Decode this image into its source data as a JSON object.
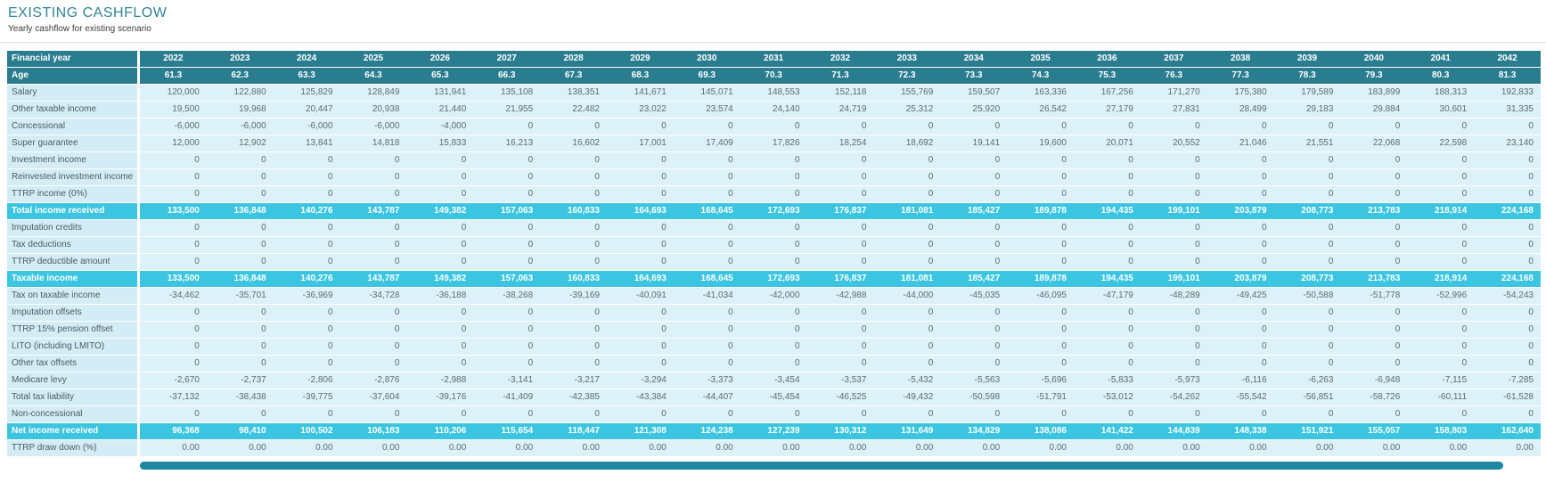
{
  "page": {
    "title": "EXISTING CASHFLOW",
    "subtitle": "Yearly cashflow for existing scenario"
  },
  "colors": {
    "title_color": "#2E8497",
    "header_bg": "#2A7D8F",
    "highlight_bg": "#3CC5E0",
    "row_bg": "#DDF1F8",
    "label_bg": "#D3ECF6",
    "value_text": "#5D6C74",
    "label_text": "#4E5B61",
    "scrollbar_color": "#1E87A1"
  },
  "table": {
    "header_rows": [
      {
        "label": "Financial year",
        "values": [
          "2022",
          "2023",
          "2024",
          "2025",
          "2026",
          "2027",
          "2028",
          "2029",
          "2030",
          "2031",
          "2032",
          "2033",
          "2034",
          "2035",
          "2036",
          "2037",
          "2038",
          "2039",
          "2040",
          "2041",
          "2042"
        ]
      },
      {
        "label": "Age",
        "values": [
          "61.3",
          "62.3",
          "63.3",
          "64.3",
          "65.3",
          "66.3",
          "67.3",
          "68.3",
          "69.3",
          "70.3",
          "71.3",
          "72.3",
          "73.3",
          "74.3",
          "75.3",
          "76.3",
          "77.3",
          "78.3",
          "79.3",
          "80.3",
          "81.3"
        ]
      }
    ],
    "rows": [
      {
        "label": "Salary",
        "type": "normal",
        "values": [
          "120,000",
          "122,880",
          "125,829",
          "128,849",
          "131,941",
          "135,108",
          "138,351",
          "141,671",
          "145,071",
          "148,553",
          "152,118",
          "155,769",
          "159,507",
          "163,336",
          "167,256",
          "171,270",
          "175,380",
          "179,589",
          "183,899",
          "188,313",
          "192,833"
        ]
      },
      {
        "label": "Other taxable income",
        "type": "normal",
        "values": [
          "19,500",
          "19,968",
          "20,447",
          "20,938",
          "21,440",
          "21,955",
          "22,482",
          "23,022",
          "23,574",
          "24,140",
          "24,719",
          "25,312",
          "25,920",
          "26,542",
          "27,179",
          "27,831",
          "28,499",
          "29,183",
          "29,884",
          "30,601",
          "31,335"
        ]
      },
      {
        "label": "Concessional",
        "type": "normal",
        "values": [
          "-6,000",
          "-6,000",
          "-6,000",
          "-6,000",
          "-4,000",
          "0",
          "0",
          "0",
          "0",
          "0",
          "0",
          "0",
          "0",
          "0",
          "0",
          "0",
          "0",
          "0",
          "0",
          "0",
          "0"
        ]
      },
      {
        "label": "Super guarantee",
        "type": "normal",
        "values": [
          "12,000",
          "12,902",
          "13,841",
          "14,818",
          "15,833",
          "16,213",
          "16,602",
          "17,001",
          "17,409",
          "17,826",
          "18,254",
          "18,692",
          "19,141",
          "19,600",
          "20,071",
          "20,552",
          "21,046",
          "21,551",
          "22,068",
          "22,598",
          "23,140"
        ]
      },
      {
        "label": "Investment income",
        "type": "normal",
        "values": [
          "0",
          "0",
          "0",
          "0",
          "0",
          "0",
          "0",
          "0",
          "0",
          "0",
          "0",
          "0",
          "0",
          "0",
          "0",
          "0",
          "0",
          "0",
          "0",
          "0",
          "0"
        ]
      },
      {
        "label": "Reinvested investment income",
        "type": "normal",
        "values": [
          "0",
          "0",
          "0",
          "0",
          "0",
          "0",
          "0",
          "0",
          "0",
          "0",
          "0",
          "0",
          "0",
          "0",
          "0",
          "0",
          "0",
          "0",
          "0",
          "0",
          "0"
        ]
      },
      {
        "label": "TTRP income (0%)",
        "type": "normal",
        "values": [
          "0",
          "0",
          "0",
          "0",
          "0",
          "0",
          "0",
          "0",
          "0",
          "0",
          "0",
          "0",
          "0",
          "0",
          "0",
          "0",
          "0",
          "0",
          "0",
          "0",
          "0"
        ]
      },
      {
        "label": "Total income received",
        "type": "highlight",
        "values": [
          "133,500",
          "136,848",
          "140,276",
          "143,787",
          "149,382",
          "157,063",
          "160,833",
          "164,693",
          "168,645",
          "172,693",
          "176,837",
          "181,081",
          "185,427",
          "189,878",
          "194,435",
          "199,101",
          "203,879",
          "208,773",
          "213,783",
          "218,914",
          "224,168"
        ]
      },
      {
        "label": "Imputation credits",
        "type": "normal",
        "values": [
          "0",
          "0",
          "0",
          "0",
          "0",
          "0",
          "0",
          "0",
          "0",
          "0",
          "0",
          "0",
          "0",
          "0",
          "0",
          "0",
          "0",
          "0",
          "0",
          "0",
          "0"
        ]
      },
      {
        "label": "Tax deductions",
        "type": "normal",
        "values": [
          "0",
          "0",
          "0",
          "0",
          "0",
          "0",
          "0",
          "0",
          "0",
          "0",
          "0",
          "0",
          "0",
          "0",
          "0",
          "0",
          "0",
          "0",
          "0",
          "0",
          "0"
        ]
      },
      {
        "label": "TTRP deductible amount",
        "type": "normal",
        "values": [
          "0",
          "0",
          "0",
          "0",
          "0",
          "0",
          "0",
          "0",
          "0",
          "0",
          "0",
          "0",
          "0",
          "0",
          "0",
          "0",
          "0",
          "0",
          "0",
          "0",
          "0"
        ]
      },
      {
        "label": "Taxable income",
        "type": "highlight",
        "values": [
          "133,500",
          "136,848",
          "140,276",
          "143,787",
          "149,382",
          "157,063",
          "160,833",
          "164,693",
          "168,645",
          "172,693",
          "176,837",
          "181,081",
          "185,427",
          "189,878",
          "194,435",
          "199,101",
          "203,879",
          "208,773",
          "213,783",
          "218,914",
          "224,168"
        ]
      },
      {
        "label": "Tax on taxable income",
        "type": "normal",
        "values": [
          "-34,462",
          "-35,701",
          "-36,969",
          "-34,728",
          "-36,188",
          "-38,268",
          "-39,169",
          "-40,091",
          "-41,034",
          "-42,000",
          "-42,988",
          "-44,000",
          "-45,035",
          "-46,095",
          "-47,179",
          "-48,289",
          "-49,425",
          "-50,588",
          "-51,778",
          "-52,996",
          "-54,243"
        ]
      },
      {
        "label": "Imputation offsets",
        "type": "normal",
        "values": [
          "0",
          "0",
          "0",
          "0",
          "0",
          "0",
          "0",
          "0",
          "0",
          "0",
          "0",
          "0",
          "0",
          "0",
          "0",
          "0",
          "0",
          "0",
          "0",
          "0",
          "0"
        ]
      },
      {
        "label": "TTRP 15% pension offset",
        "type": "normal",
        "values": [
          "0",
          "0",
          "0",
          "0",
          "0",
          "0",
          "0",
          "0",
          "0",
          "0",
          "0",
          "0",
          "0",
          "0",
          "0",
          "0",
          "0",
          "0",
          "0",
          "0",
          "0"
        ]
      },
      {
        "label": "LITO (including LMITO)",
        "type": "normal",
        "values": [
          "0",
          "0",
          "0",
          "0",
          "0",
          "0",
          "0",
          "0",
          "0",
          "0",
          "0",
          "0",
          "0",
          "0",
          "0",
          "0",
          "0",
          "0",
          "0",
          "0",
          "0"
        ]
      },
      {
        "label": "Other tax offsets",
        "type": "normal",
        "values": [
          "0",
          "0",
          "0",
          "0",
          "0",
          "0",
          "0",
          "0",
          "0",
          "0",
          "0",
          "0",
          "0",
          "0",
          "0",
          "0",
          "0",
          "0",
          "0",
          "0",
          "0"
        ]
      },
      {
        "label": "Medicare levy",
        "type": "normal",
        "values": [
          "-2,670",
          "-2,737",
          "-2,806",
          "-2,876",
          "-2,988",
          "-3,141",
          "-3,217",
          "-3,294",
          "-3,373",
          "-3,454",
          "-3,537",
          "-5,432",
          "-5,563",
          "-5,696",
          "-5,833",
          "-5,973",
          "-6,116",
          "-6,263",
          "-6,948",
          "-7,115",
          "-7,285"
        ]
      },
      {
        "label": "Total tax liability",
        "type": "normal",
        "values": [
          "-37,132",
          "-38,438",
          "-39,775",
          "-37,604",
          "-39,176",
          "-41,409",
          "-42,385",
          "-43,384",
          "-44,407",
          "-45,454",
          "-46,525",
          "-49,432",
          "-50,598",
          "-51,791",
          "-53,012",
          "-54,262",
          "-55,542",
          "-56,851",
          "-58,726",
          "-60,111",
          "-61,528"
        ]
      },
      {
        "label": "Non-concessional",
        "type": "normal",
        "values": [
          "0",
          "0",
          "0",
          "0",
          "0",
          "0",
          "0",
          "0",
          "0",
          "0",
          "0",
          "0",
          "0",
          "0",
          "0",
          "0",
          "0",
          "0",
          "0",
          "0",
          "0"
        ]
      },
      {
        "label": "Net income received",
        "type": "highlight",
        "values": [
          "96,368",
          "98,410",
          "100,502",
          "106,183",
          "110,206",
          "115,654",
          "118,447",
          "121,308",
          "124,238",
          "127,239",
          "130,312",
          "131,649",
          "134,829",
          "138,086",
          "141,422",
          "144,839",
          "148,338",
          "151,921",
          "155,057",
          "158,803",
          "162,640"
        ]
      },
      {
        "label": "TTRP draw down (%)",
        "type": "normal",
        "values": [
          "0.00",
          "0.00",
          "0.00",
          "0.00",
          "0.00",
          "0.00",
          "0.00",
          "0.00",
          "0.00",
          "0.00",
          "0.00",
          "0.00",
          "0.00",
          "0.00",
          "0.00",
          "0.00",
          "0.00",
          "0.00",
          "0.00",
          "0.00",
          "0.00"
        ]
      }
    ]
  }
}
